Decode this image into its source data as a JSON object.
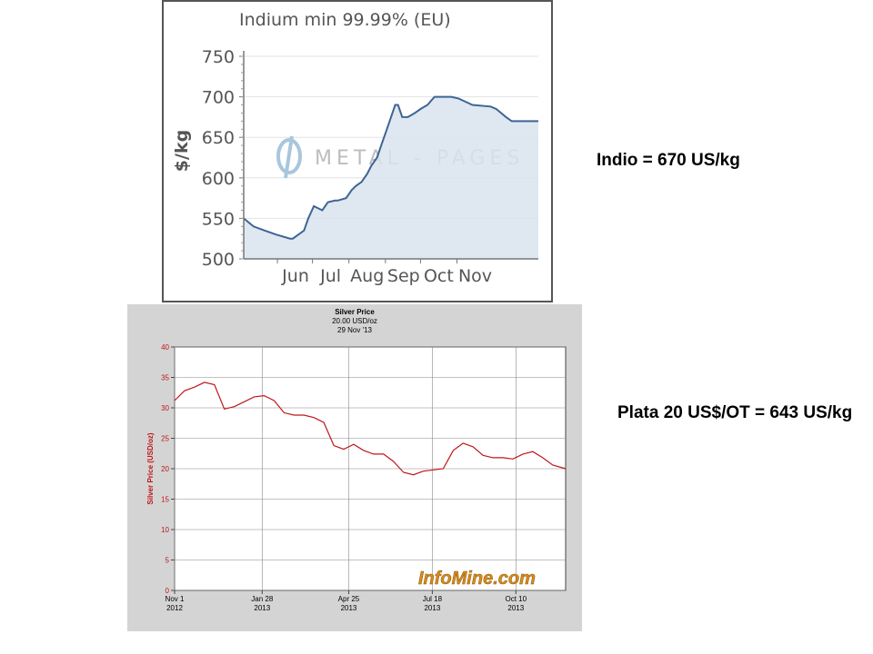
{
  "chart_data": [
    {
      "type": "area",
      "title": "Indium min 99.99% (EU)",
      "ylabel": "$/kg",
      "ylim": [
        500,
        750
      ],
      "yticks": [
        "750",
        "700",
        "650",
        "600",
        "550",
        "500"
      ],
      "xticks": [
        "Jun",
        "Jul",
        "Aug",
        "Sep",
        "Oct",
        "Nov"
      ],
      "watermark": "METAL - PAGES",
      "colors": {
        "line": "#3e6593",
        "fill": "#d9e3ee",
        "frame": "#555555",
        "text": "#555555"
      },
      "series": [
        {
          "x": [
            0,
            0.7,
            1.5,
            2.3,
            3.3,
            3.5,
            4.3,
            4.6,
            5.0,
            5.6,
            6.0,
            6.5,
            6.7,
            7.3,
            7.7,
            8.0,
            8.4,
            8.8,
            9.1,
            9.5,
            9.8,
            10.2,
            10.5,
            10.8,
            11.0,
            11.3,
            11.7,
            12.2,
            12.6,
            13.1,
            13.6,
            14.3,
            14.8,
            15.3,
            16.3,
            17.6,
            18.0,
            18.7,
            19.1,
            20.1,
            21.0
          ],
          "y": [
            550,
            540,
            535,
            530,
            525,
            525,
            535,
            550,
            565,
            560,
            570,
            572,
            572,
            575,
            585,
            590,
            595,
            605,
            615,
            625,
            640,
            660,
            675,
            690,
            690,
            675,
            675,
            680,
            685,
            690,
            700,
            700,
            700,
            698,
            690,
            688,
            685,
            675,
            670,
            670,
            670
          ]
        }
      ]
    },
    {
      "type": "line",
      "title": "Silver Price",
      "subtitle": "20.00 USD/oz",
      "date": "29 Nov '13",
      "ylabel": "Silver Price (USD/oz)",
      "ylim": [
        0,
        40
      ],
      "yticks": [
        "40",
        "35",
        "30",
        "25",
        "20",
        "15",
        "10",
        "5",
        "0"
      ],
      "xticks": [
        {
          "line1": "Nov 1",
          "line2": "2012"
        },
        {
          "line1": "Jan 28",
          "line2": "2013"
        },
        {
          "line1": "Apr 25",
          "line2": "2013"
        },
        {
          "line1": "Jul 18",
          "line2": "2013"
        },
        {
          "line1": "Oct 10",
          "line2": "2013"
        }
      ],
      "watermark": "InfoMine.com",
      "colors": {
        "line": "#c0161b",
        "background": "#d4d4d4",
        "grid": "#888888",
        "text": "#000000",
        "axis_label": "#c0161b",
        "watermark": "#d98b1a"
      },
      "series": [
        {
          "x": [
            "2012-11-01",
            "2012-11-11",
            "2012-11-21",
            "2012-12-01",
            "2012-12-11",
            "2012-12-21",
            "2012-12-31",
            "2013-01-10",
            "2013-01-20",
            "2013-01-30",
            "2013-02-09",
            "2013-02-19",
            "2013-03-01",
            "2013-03-11",
            "2013-03-21",
            "2013-03-31",
            "2013-04-10",
            "2013-04-20",
            "2013-04-30",
            "2013-05-10",
            "2013-05-20",
            "2013-05-30",
            "2013-06-09",
            "2013-06-19",
            "2013-06-29",
            "2013-07-09",
            "2013-07-19",
            "2013-07-29",
            "2013-08-08",
            "2013-08-18",
            "2013-08-28",
            "2013-09-07",
            "2013-09-17",
            "2013-09-27",
            "2013-10-07",
            "2013-10-17",
            "2013-10-27",
            "2013-11-06",
            "2013-11-16",
            "2013-11-29"
          ],
          "values": [
            31.2,
            32.8,
            33.4,
            34.2,
            33.8,
            29.8,
            30.2,
            31.0,
            31.8,
            32.0,
            31.2,
            29.2,
            28.8,
            28.8,
            28.4,
            27.6,
            23.8,
            23.2,
            24.0,
            23.0,
            22.4,
            22.4,
            21.2,
            19.4,
            19.0,
            19.6,
            19.8,
            20.0,
            23.0,
            24.2,
            23.6,
            22.2,
            21.8,
            21.8,
            21.6,
            22.4,
            22.8,
            21.8,
            20.6,
            20.0
          ]
        }
      ]
    }
  ],
  "notes": {
    "indium": "Indio = 670 US/kg",
    "silver": "Plata 20 US$/OT = 643 US/kg"
  }
}
